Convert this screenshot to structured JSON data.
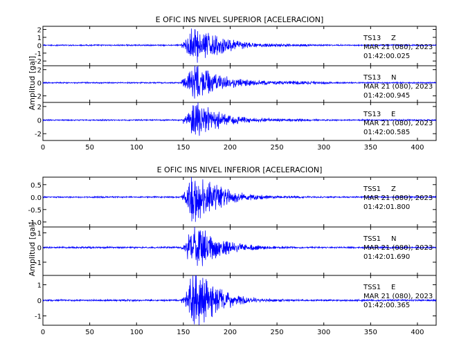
{
  "chart_data": [
    {
      "type": "line",
      "title": "E OFIC INS NIVEL SUPERIOR [ACELERACION]",
      "xlabel": "",
      "ylabel": "Amplitud [gal]",
      "xlim": [
        0,
        420
      ],
      "x_ticks": [
        0,
        50,
        100,
        150,
        200,
        250,
        300,
        350,
        400
      ],
      "x_tick_labels": [
        "0",
        "50",
        "100",
        "150",
        "200",
        "250",
        "300",
        "350",
        "400"
      ],
      "grid": false,
      "series_color": "#0000ff",
      "traces": [
        {
          "station": "TS13",
          "channel": "Z",
          "date": "MAR 21 (080), 2023",
          "time": "01:42:00.025",
          "ylim": [
            -2.6,
            2.4
          ],
          "y_ticks": [
            -2,
            -1,
            0,
            1,
            2
          ],
          "y_tick_labels": [
            "-2",
            "-1",
            "0",
            "1",
            "2"
          ],
          "envelope": {
            "noise": 0.06,
            "onset": 148,
            "peak_time": 162,
            "peak": 2.1,
            "decay": 28,
            "coda": 0.25,
            "coda_until": 300,
            "ring_freq": 1.0
          }
        },
        {
          "station": "TS13",
          "channel": "N",
          "date": "MAR 21 (080), 2023",
          "time": "01:42:00.945",
          "ylim": [
            -3.0,
            2.6
          ],
          "y_ticks": [
            -2,
            0,
            2
          ],
          "y_tick_labels": [
            "-2",
            "0",
            "2"
          ],
          "envelope": {
            "noise": 0.07,
            "onset": 148,
            "peak_time": 163,
            "peak": 2.2,
            "decay": 30,
            "coda": 0.35,
            "coda_until": 330,
            "ring_freq": 1.2
          }
        },
        {
          "station": "TS13",
          "channel": "E",
          "date": "MAR 21 (080), 2023",
          "time": "01:42:00.585",
          "ylim": [
            -3.0,
            2.6
          ],
          "y_ticks": [
            -2,
            0,
            2
          ],
          "y_tick_labels": [
            "-2",
            "0",
            "2"
          ],
          "envelope": {
            "noise": 0.07,
            "onset": 150,
            "peak_time": 163,
            "peak": 2.3,
            "decay": 26,
            "coda": 0.3,
            "coda_until": 310,
            "ring_freq": 1.2
          }
        }
      ]
    },
    {
      "type": "line",
      "title": "E OFIC INS NIVEL INFERIOR [ACELERACION]",
      "xlabel": "",
      "ylabel": "Amplitud [gal]",
      "xlim": [
        0,
        420
      ],
      "x_ticks": [
        0,
        50,
        100,
        150,
        200,
        250,
        300,
        350,
        400
      ],
      "x_tick_labels": [
        "0",
        "50",
        "100",
        "150",
        "200",
        "250",
        "300",
        "350",
        "400"
      ],
      "grid": false,
      "series_color": "#0000ff",
      "traces": [
        {
          "station": "TSS1",
          "channel": "Z",
          "date": "MAR 21 (080), 2023",
          "time": "01:42:01.800",
          "ylim": [
            -1.2,
            0.8
          ],
          "y_ticks": [
            -1.0,
            -0.5,
            0.0,
            0.5
          ],
          "y_tick_labels": [
            "-1.0",
            "-0.5",
            "0.0",
            "0.5"
          ],
          "envelope": {
            "noise": 0.02,
            "onset": 148,
            "peak_time": 160,
            "peak": 0.8,
            "decay": 30,
            "coda": 0.06,
            "coda_until": 300,
            "ring_freq": 1.0
          }
        },
        {
          "station": "TSS1",
          "channel": "N",
          "date": "MAR 21 (080), 2023",
          "time": "01:42:01.690",
          "ylim": [
            -1.9,
            1.4
          ],
          "y_ticks": [
            -1,
            0,
            1
          ],
          "y_tick_labels": [
            "-1",
            "0",
            "1"
          ],
          "envelope": {
            "noise": 0.04,
            "onset": 148,
            "peak_time": 162,
            "peak": 1.2,
            "decay": 28,
            "coda": 0.1,
            "coda_until": 280,
            "ring_freq": 1.1
          }
        },
        {
          "station": "TSS1",
          "channel": "E",
          "date": "MAR 21 (080), 2023",
          "time": "01:42:00.365",
          "ylim": [
            -1.6,
            1.6
          ],
          "y_ticks": [
            -1,
            0,
            1
          ],
          "y_tick_labels": [
            "-1",
            "0",
            "1"
          ],
          "envelope": {
            "noise": 0.04,
            "onset": 148,
            "peak_time": 162,
            "peak": 1.5,
            "decay": 26,
            "coda": 0.1,
            "coda_until": 280,
            "ring_freq": 1.1
          }
        }
      ]
    }
  ]
}
